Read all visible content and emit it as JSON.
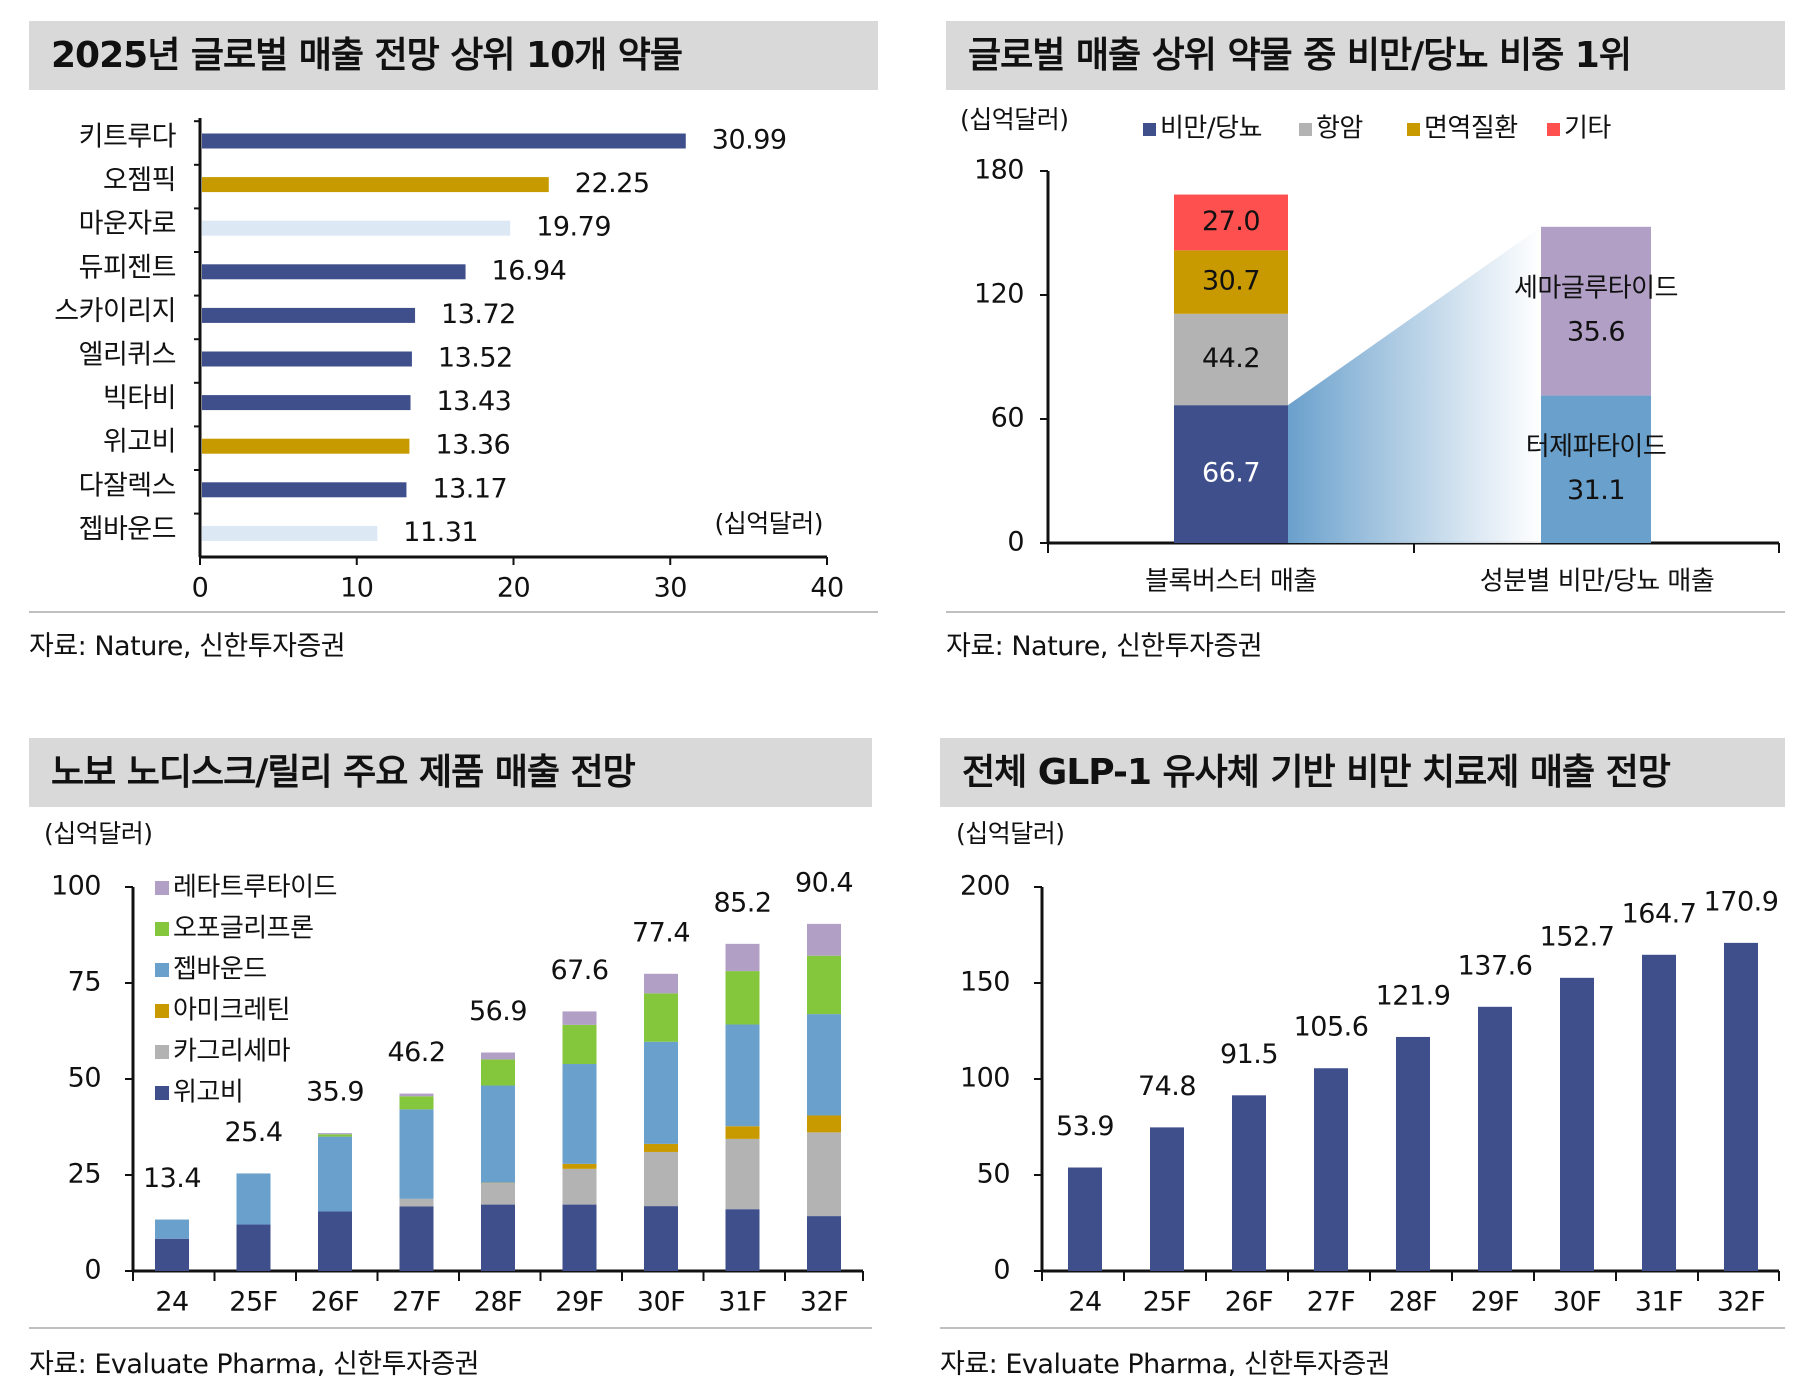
{
  "chart_data": [
    {
      "type": "bar",
      "orientation": "horizontal",
      "title": "2025년 글로벌 매출 전망 상위 10개 약물",
      "unit_label": "(십억달러)",
      "categories": [
        "키트루다",
        "오젬픽",
        "마운자로",
        "듀피젠트",
        "스카이리지",
        "엘리퀴스",
        "빅타비",
        "위고비",
        "다잘렉스",
        "젭바운드"
      ],
      "values": [
        30.99,
        22.25,
        19.79,
        16.94,
        13.72,
        13.52,
        13.43,
        13.36,
        13.17,
        11.31
      ],
      "value_labels": [
        "30.99",
        "22.25",
        "19.79",
        "16.94",
        "13.72",
        "13.52",
        "13.43",
        "13.36",
        "13.17",
        "11.31"
      ],
      "bar_colors": [
        "#3f4f8c",
        "#c79a00",
        "#dde8f5",
        "#3f4f8c",
        "#3f4f8c",
        "#3f4f8c",
        "#3f4f8c",
        "#c79a00",
        "#3f4f8c",
        "#dde8f5"
      ],
      "xlim": [
        0,
        40
      ],
      "xticks": [
        "0",
        "10",
        "20",
        "30",
        "40"
      ],
      "source": "자료: Nature, 신한투자증권"
    },
    {
      "type": "bar",
      "stacked": true,
      "title": "글로벌 매출 상위 약물 중 비만/당뇨 비중 1위",
      "unit_label": "(십억달러)",
      "ylim": [
        0,
        180
      ],
      "yticks": [
        "0",
        "60",
        "120",
        "180"
      ],
      "legend": [
        {
          "name": "비만/당뇨",
          "color": "#3f4f8c"
        },
        {
          "name": "항암",
          "color": "#b3b3b3"
        },
        {
          "name": "면역질환",
          "color": "#c99a00"
        },
        {
          "name": "기타",
          "color": "#ff5050"
        }
      ],
      "categories": [
        "블록버스터 매출",
        "성분별 비만/당뇨 매출"
      ],
      "left_stack": [
        {
          "name": "비만/당뇨",
          "value": 66.7,
          "label": "66.7",
          "color": "#3f4f8c",
          "text_color": "#ffffff"
        },
        {
          "name": "항암",
          "value": 44.2,
          "label": "44.2",
          "color": "#b3b3b3",
          "text_color": "#111111"
        },
        {
          "name": "면역질환",
          "value": 30.7,
          "label": "30.7",
          "color": "#c99a00",
          "text_color": "#111111"
        },
        {
          "name": "기타",
          "value": 27.0,
          "label": "27.0",
          "color": "#ff5050",
          "text_color": "#111111"
        }
      ],
      "right_stack": [
        {
          "name": "터제파타이드",
          "value": 31.1,
          "label": "31.1",
          "color": "#6aa0cc"
        },
        {
          "name": "세마글루타이드",
          "value": 35.6,
          "label": "35.6",
          "color": "#b19fc6"
        }
      ],
      "source": "자료: Nature, 신한투자증권"
    },
    {
      "type": "bar",
      "stacked": true,
      "title": "노보 노디스크/릴리 주요 제품 매출 전망",
      "unit_label": "(십억달러)",
      "ylim": [
        0,
        100
      ],
      "yticks": [
        "0",
        "25",
        "50",
        "75",
        "100"
      ],
      "categories": [
        "24",
        "25F",
        "26F",
        "27F",
        "28F",
        "29F",
        "30F",
        "31F",
        "32F"
      ],
      "totals": [
        "13.4",
        "25.4",
        "35.9",
        "46.2",
        "56.9",
        "67.6",
        "77.4",
        "85.2",
        "90.4"
      ],
      "series": [
        {
          "name": "위고비",
          "color": "#3f4f8c",
          "values": [
            8.4,
            12.1,
            15.5,
            16.8,
            17.3,
            17.3,
            16.9,
            16.1,
            14.3
          ]
        },
        {
          "name": "카그리세마",
          "color": "#b3b3b3",
          "values": [
            0,
            0,
            0,
            2.0,
            5.6,
            9.3,
            14.1,
            18.3,
            21.8
          ]
        },
        {
          "name": "아미크레틴",
          "color": "#c99a00",
          "values": [
            0,
            0,
            0,
            0,
            0.1,
            1.3,
            2.1,
            3.3,
            4.4
          ]
        },
        {
          "name": "젭바운드",
          "color": "#6aa0cc",
          "values": [
            5.0,
            13.3,
            19.5,
            23.3,
            25.3,
            26.0,
            26.6,
            26.5,
            26.4
          ]
        },
        {
          "name": "오포글리프론",
          "color": "#84c63c",
          "values": [
            0,
            0,
            0.6,
            3.4,
            6.8,
            10.2,
            12.6,
            13.9,
            15.2
          ]
        },
        {
          "name": "레타트루타이드",
          "color": "#b19fc6",
          "values": [
            0,
            0,
            0.3,
            0.7,
            1.8,
            3.5,
            5.1,
            7.1,
            8.3
          ]
        }
      ],
      "source": "자료: Evaluate Pharma, 신한투자증권"
    },
    {
      "type": "bar",
      "title": "전체 GLP-1 유사체 기반 비만 치료제 매출 전망",
      "unit_label": "(십억달러)",
      "ylim": [
        0,
        200
      ],
      "yticks": [
        "0",
        "50",
        "100",
        "150",
        "200"
      ],
      "categories": [
        "24",
        "25F",
        "26F",
        "27F",
        "28F",
        "29F",
        "30F",
        "31F",
        "32F"
      ],
      "values": [
        53.9,
        74.8,
        91.5,
        105.6,
        121.9,
        137.6,
        152.7,
        164.7,
        170.9
      ],
      "value_labels": [
        "53.9",
        "74.8",
        "91.5",
        "105.6",
        "121.9",
        "137.6",
        "152.7",
        "164.7",
        "170.9"
      ],
      "color": "#3f4f8c",
      "source": "자료: Evaluate Pharma, 신한투자증권"
    }
  ]
}
